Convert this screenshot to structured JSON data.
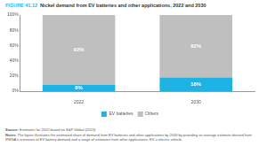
{
  "chart_data": {
    "type": "bar",
    "title": "FIGURE 41.12 Nickel demand from EV batteries and other applications, 2022 and 2030",
    "categories": [
      "2022",
      "2030"
    ],
    "series": [
      {
        "name": "EV batteries",
        "color": "#1fb3e5",
        "values": [
          8,
          18
        ],
        "value_labels": [
          "8%",
          "18%"
        ]
      },
      {
        "name": "Others",
        "color": "#bfbfbf",
        "values": [
          92,
          82
        ],
        "value_labels": [
          "92%",
          "82%"
        ]
      }
    ],
    "stacked": true,
    "data_labels": true,
    "ylim": [
      0,
      100
    ],
    "yticks": [
      {
        "value": 0,
        "label": "0%"
      },
      {
        "value": 20,
        "label": "20%"
      },
      {
        "value": 40,
        "label": "40%"
      },
      {
        "value": 60,
        "label": "60%"
      },
      {
        "value": 80,
        "label": "80%"
      },
      {
        "value": 100,
        "label": "100%"
      }
    ],
    "grid": false,
    "legend": "bottom",
    "annotations": [
      "Source: Estimates for 2022 based on S&P Global (2023).",
      "Notes: The figure illustrates the estimated share of demand from EV batteries and other applications by 2030 by providing an average estimate derived from IRENA's scenarios of EV battery demand and a range of estimates from other applications. EV = electric vehicle."
    ]
  }
}
